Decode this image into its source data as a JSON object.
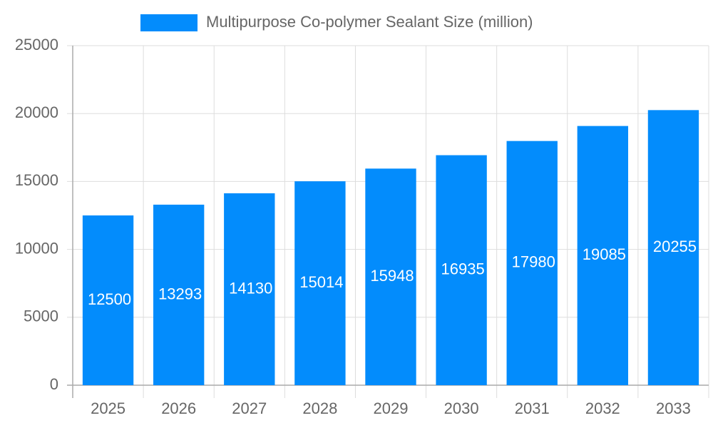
{
  "chart_data": {
    "type": "bar",
    "categories": [
      "2025",
      "2026",
      "2027",
      "2028",
      "2029",
      "2030",
      "2031",
      "2032",
      "2033"
    ],
    "series": [
      {
        "name": "Multipurpose Co-polymer Sealant Size (million)",
        "color": "#038cfc",
        "values": [
          12500,
          13293,
          14130,
          15014,
          15948,
          16935,
          17980,
          19085,
          20255
        ]
      }
    ],
    "ylim": [
      0,
      25000
    ],
    "yticks": [
      0,
      5000,
      10000,
      15000,
      20000,
      25000
    ],
    "grid": true,
    "legend": "top"
  }
}
